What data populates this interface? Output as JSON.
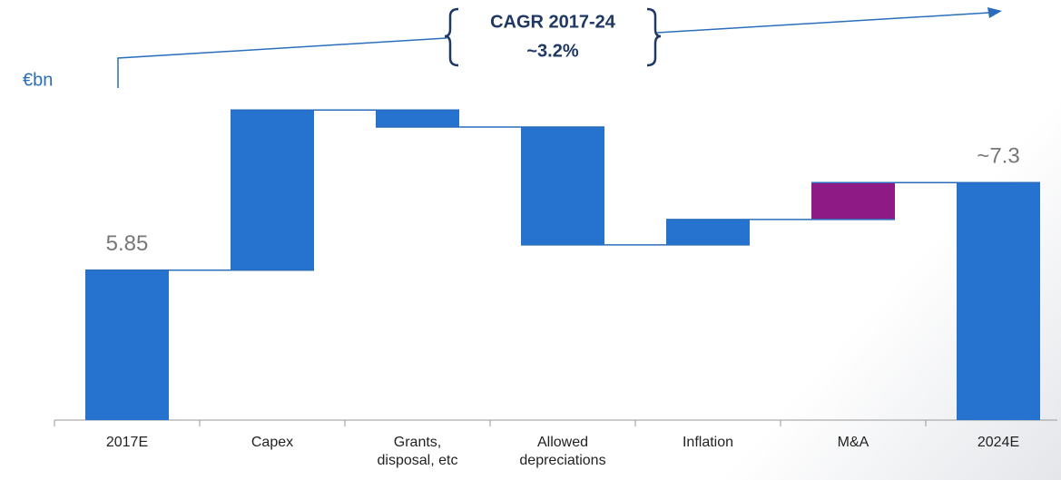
{
  "chart_data": {
    "type": "waterfall",
    "unit_label": "€bn",
    "annotation": {
      "title": "CAGR 2017-24",
      "value": "~3.2%"
    },
    "categories": [
      "2017E",
      "Capex",
      "Grants, disposal, etc",
      "Allowed depreciations",
      "Inflation",
      "M&A",
      "2024E"
    ],
    "values": [
      5.85,
      2.65,
      -0.28,
      -1.95,
      0.42,
      0.61,
      7.3
    ],
    "value_labels": [
      "5.85",
      null,
      null,
      null,
      null,
      null,
      "~7.3"
    ],
    "colors": [
      "#2573cf",
      "#2573cf",
      "#2573cf",
      "#2573cf",
      "#2573cf",
      "#8e1a85",
      "#2573cf"
    ],
    "ylim": [
      3.37,
      10.3
    ]
  }
}
